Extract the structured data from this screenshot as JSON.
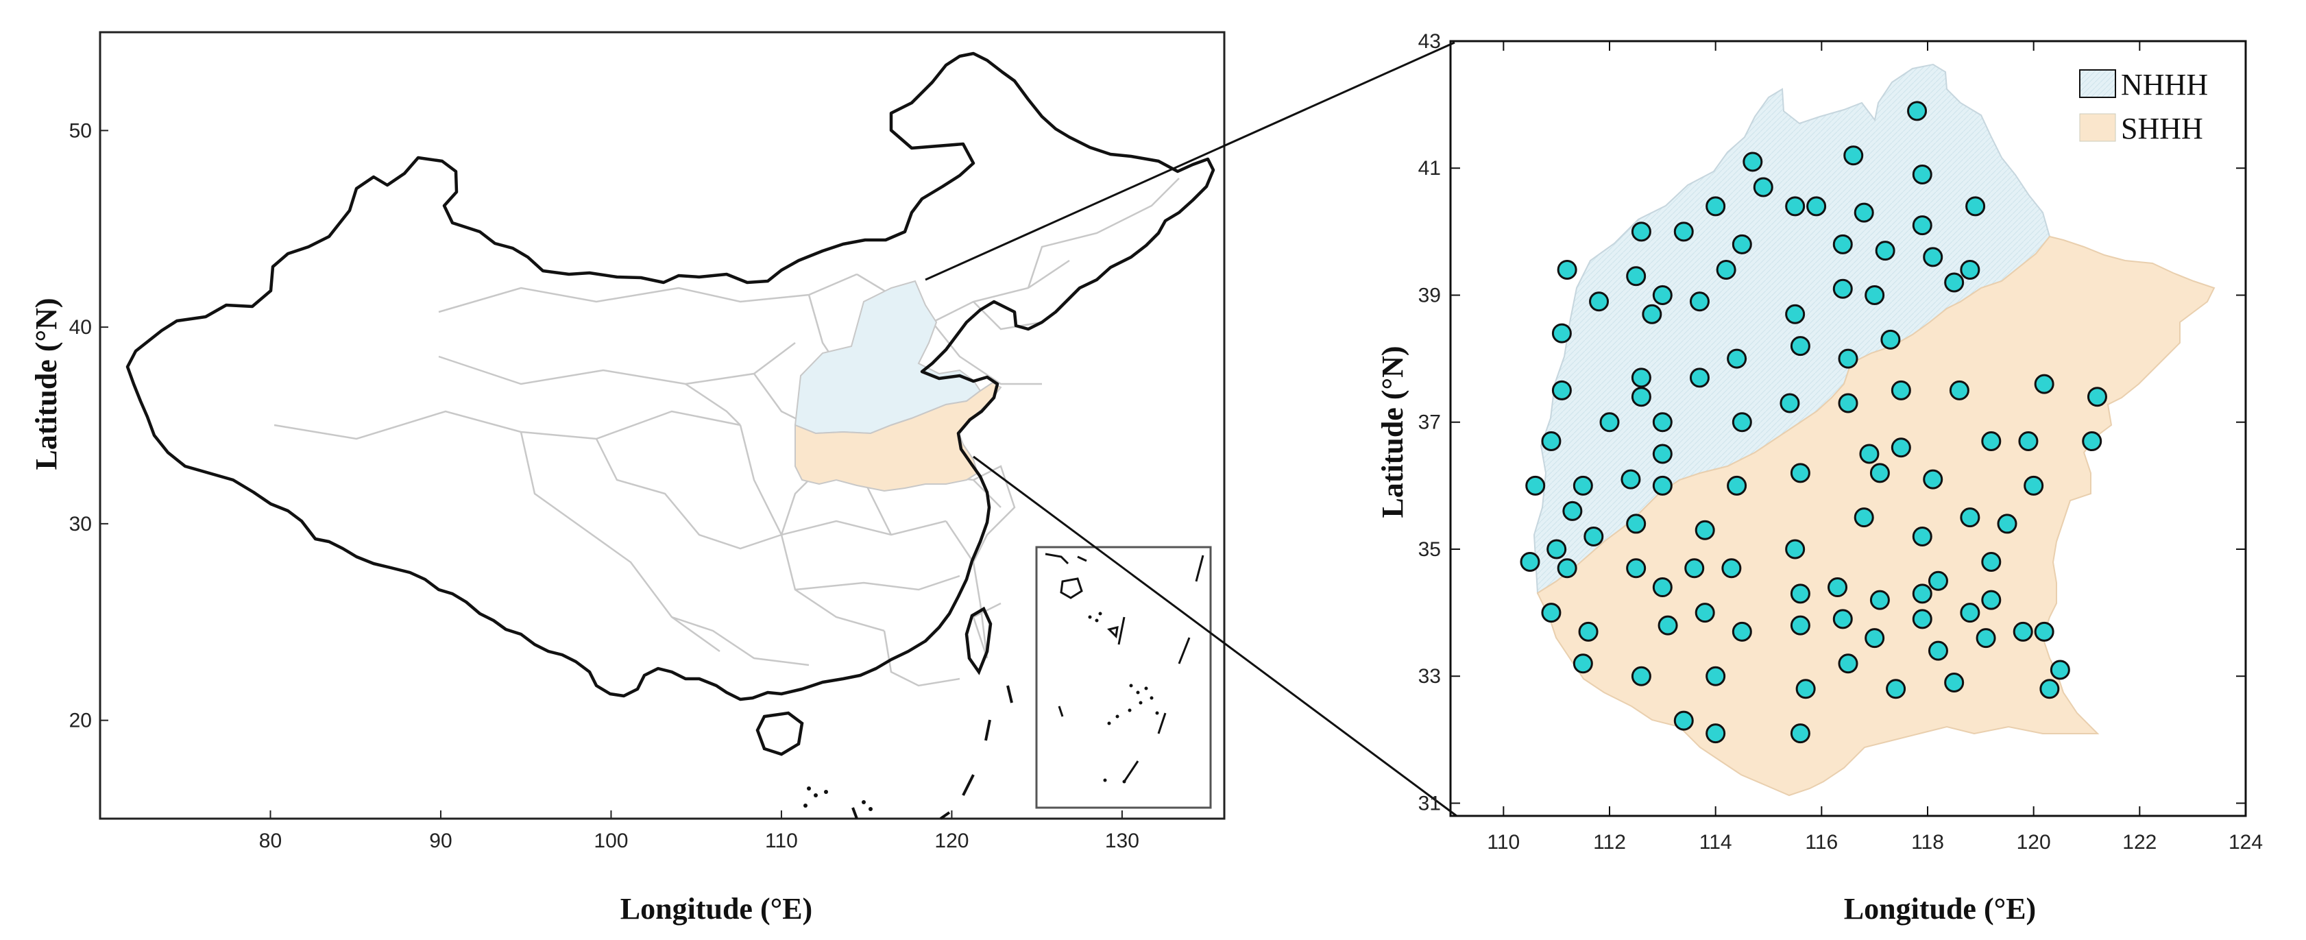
{
  "colors": {
    "north_fill": "#e4f1f6",
    "south_fill": "#fae6cc",
    "station_fill": "#2ed3d3",
    "border": "#111111",
    "province_line": "#c8c8c8"
  },
  "left_map": {
    "xlabel": "Longitude (°E)",
    "ylabel": "Latitude (°N)",
    "x_ticks": [
      "80",
      "90",
      "100",
      "110",
      "120",
      "130"
    ],
    "y_ticks": [
      "50",
      "40",
      "30",
      "20"
    ]
  },
  "right_map": {
    "xlabel": "Longitude (°E)",
    "ylabel": "Latitude (°N)",
    "x_ticks": [
      "110",
      "112",
      "114",
      "116",
      "118",
      "120",
      "122",
      "124"
    ],
    "y_ticks": [
      "43",
      "41",
      "39",
      "37",
      "35",
      "33",
      "31"
    ],
    "legend": [
      {
        "label": "NHHH",
        "icon": "hatched-light-blue-swatch"
      },
      {
        "label": "SHHH",
        "icon": "light-orange-swatch"
      }
    ],
    "stations": [
      [
        117.8,
        41.9
      ],
      [
        116.6,
        41.2
      ],
      [
        114.7,
        41.1
      ],
      [
        114.9,
        40.7
      ],
      [
        117.9,
        40.9
      ],
      [
        114,
        40.4
      ],
      [
        115.5,
        40.4
      ],
      [
        115.9,
        40.4
      ],
      [
        116.8,
        40.3
      ],
      [
        118.9,
        40.4
      ],
      [
        113.4,
        40
      ],
      [
        112.6,
        40
      ],
      [
        117.9,
        40.1
      ],
      [
        116.4,
        39.8
      ],
      [
        114.5,
        39.8
      ],
      [
        117.2,
        39.7
      ],
      [
        118.1,
        39.6
      ],
      [
        111.2,
        39.4
      ],
      [
        112.5,
        39.3
      ],
      [
        114.2,
        39.4
      ],
      [
        118.8,
        39.4
      ],
      [
        118.5,
        39.2
      ],
      [
        116.4,
        39.1
      ],
      [
        117,
        39
      ],
      [
        113,
        39
      ],
      [
        113.7,
        38.9
      ],
      [
        111.8,
        38.9
      ],
      [
        112.8,
        38.7
      ],
      [
        115.5,
        38.7
      ],
      [
        111.1,
        38.4
      ],
      [
        117.3,
        38.3
      ],
      [
        115.6,
        38.2
      ],
      [
        114.4,
        38
      ],
      [
        116.5,
        38
      ],
      [
        112.6,
        37.7
      ],
      [
        113.7,
        37.7
      ],
      [
        111.1,
        37.5
      ],
      [
        112.6,
        37.4
      ],
      [
        117.5,
        37.5
      ],
      [
        118.6,
        37.5
      ],
      [
        115.4,
        37.3
      ],
      [
        116.5,
        37.3
      ],
      [
        112,
        37
      ],
      [
        113,
        37
      ],
      [
        114.5,
        37
      ],
      [
        110.9,
        36.7
      ],
      [
        117.5,
        36.6
      ],
      [
        116.9,
        36.5
      ],
      [
        113,
        36.5
      ],
      [
        119.2,
        36.7
      ],
      [
        119.9,
        36.7
      ],
      [
        120.2,
        37.6
      ],
      [
        121.2,
        37.4
      ],
      [
        121.1,
        36.7
      ],
      [
        110.6,
        36
      ],
      [
        111.5,
        36
      ],
      [
        112.4,
        36.1
      ],
      [
        113,
        36
      ],
      [
        114.4,
        36
      ],
      [
        115.6,
        36.2
      ],
      [
        117.1,
        36.2
      ],
      [
        118.1,
        36.1
      ],
      [
        120,
        36
      ],
      [
        116.8,
        35.5
      ],
      [
        118.8,
        35.5
      ],
      [
        111.3,
        35.6
      ],
      [
        112.5,
        35.4
      ],
      [
        119.5,
        35.4
      ],
      [
        113.8,
        35.3
      ],
      [
        111.7,
        35.2
      ],
      [
        117.9,
        35.2
      ],
      [
        115.5,
        35
      ],
      [
        111,
        35
      ],
      [
        119.2,
        34.8
      ],
      [
        110.5,
        34.8
      ],
      [
        111.2,
        34.7
      ],
      [
        112.5,
        34.7
      ],
      [
        114.3,
        34.7
      ],
      [
        113.6,
        34.7
      ],
      [
        118.2,
        34.5
      ],
      [
        113,
        34.4
      ],
      [
        115.6,
        34.3
      ],
      [
        116.3,
        34.4
      ],
      [
        117.9,
        34.3
      ],
      [
        117.1,
        34.2
      ],
      [
        119.2,
        34.2
      ],
      [
        110.9,
        34
      ],
      [
        113.8,
        34
      ],
      [
        116.4,
        33.9
      ],
      [
        117.9,
        33.9
      ],
      [
        118.8,
        34
      ],
      [
        113.1,
        33.8
      ],
      [
        115.6,
        33.8
      ],
      [
        114.5,
        33.7
      ],
      [
        111.6,
        33.7
      ],
      [
        119.8,
        33.7
      ],
      [
        120.2,
        33.7
      ],
      [
        117,
        33.6
      ],
      [
        119.1,
        33.6
      ],
      [
        118.2,
        33.4
      ],
      [
        111.5,
        33.2
      ],
      [
        116.5,
        33.2
      ],
      [
        120.5,
        33.1
      ],
      [
        112.6,
        33
      ],
      [
        114,
        33
      ],
      [
        118.5,
        32.9
      ],
      [
        117.4,
        32.8
      ],
      [
        115.7,
        32.8
      ],
      [
        120.3,
        32.8
      ],
      [
        113.4,
        32.3
      ],
      [
        115.6,
        32.1
      ],
      [
        114,
        32.1
      ]
    ]
  }
}
